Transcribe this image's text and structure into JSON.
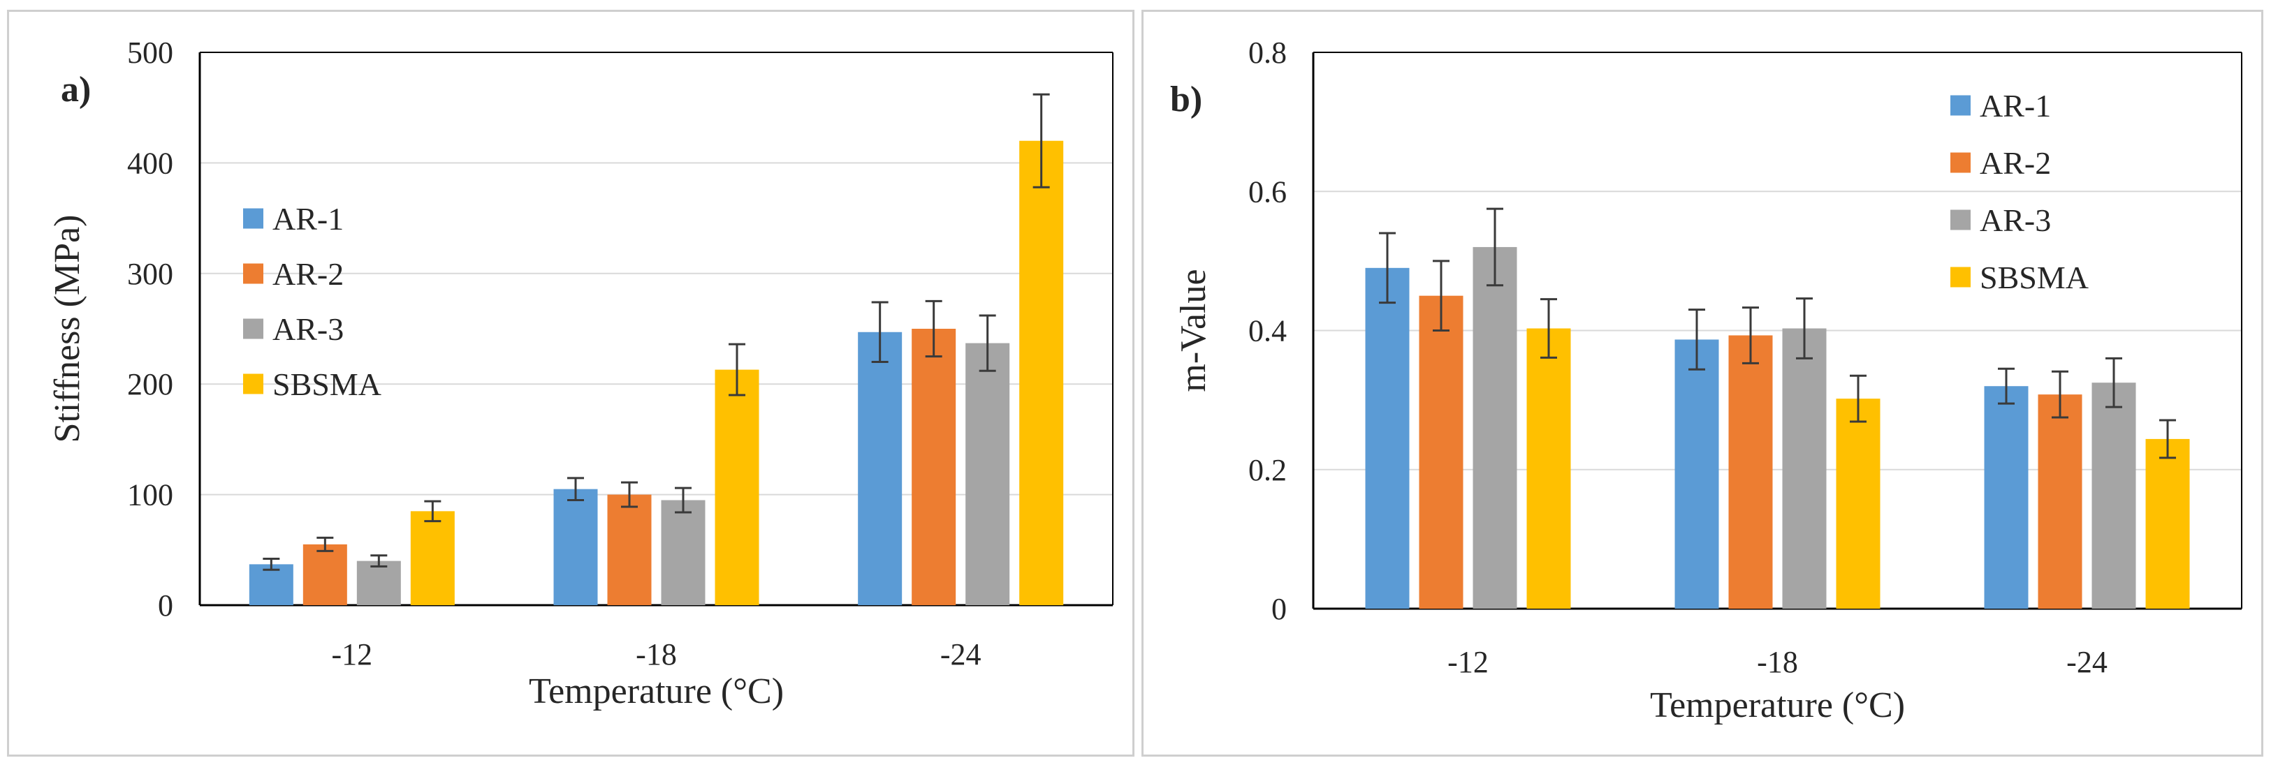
{
  "chart_data": [
    {
      "type": "bar",
      "panel_label": "a)",
      "xlabel": "Temperature (°C)",
      "ylabel": "Stiffness (MPa)",
      "ylim": [
        0,
        500
      ],
      "yticks": [
        0,
        100,
        200,
        300,
        400,
        500
      ],
      "legend_position": "left",
      "categories": [
        "-12",
        "-18",
        "-24"
      ],
      "series": [
        {
          "name": "AR-1",
          "color": "#5b9bd5",
          "values": [
            37,
            105,
            247
          ],
          "errors": [
            5,
            10,
            27
          ]
        },
        {
          "name": "AR-2",
          "color": "#ed7d31",
          "values": [
            55,
            100,
            250
          ],
          "errors": [
            6,
            11,
            25
          ]
        },
        {
          "name": "AR-3",
          "color": "#a5a5a5",
          "values": [
            40,
            95,
            237
          ],
          "errors": [
            5,
            11,
            25
          ]
        },
        {
          "name": "SBSMA",
          "color": "#ffc000",
          "values": [
            85,
            213,
            420
          ],
          "errors": [
            9,
            23,
            42
          ]
        }
      ]
    },
    {
      "type": "bar",
      "panel_label": "b)",
      "xlabel": "Temperature (°C)",
      "ylabel": "m-Value",
      "ylim": [
        0,
        0.8
      ],
      "yticks": [
        "0",
        "0.2",
        "0.4",
        "0.6",
        "0.8"
      ],
      "legend_position": "top-right",
      "categories": [
        "-12",
        "-18",
        "-24"
      ],
      "series": [
        {
          "name": "AR-1",
          "color": "#5b9bd5",
          "values": [
            0.49,
            0.387,
            0.32
          ],
          "errors": [
            0.05,
            0.043,
            0.025
          ]
        },
        {
          "name": "AR-2",
          "color": "#ed7d31",
          "values": [
            0.45,
            0.393,
            0.308
          ],
          "errors": [
            0.05,
            0.04,
            0.033
          ]
        },
        {
          "name": "AR-3",
          "color": "#a5a5a5",
          "values": [
            0.52,
            0.403,
            0.325
          ],
          "errors": [
            0.055,
            0.043,
            0.035
          ]
        },
        {
          "name": "SBSMA",
          "color": "#ffc000",
          "values": [
            0.403,
            0.302,
            0.244
          ],
          "errors": [
            0.042,
            0.033,
            0.027
          ]
        }
      ]
    }
  ]
}
